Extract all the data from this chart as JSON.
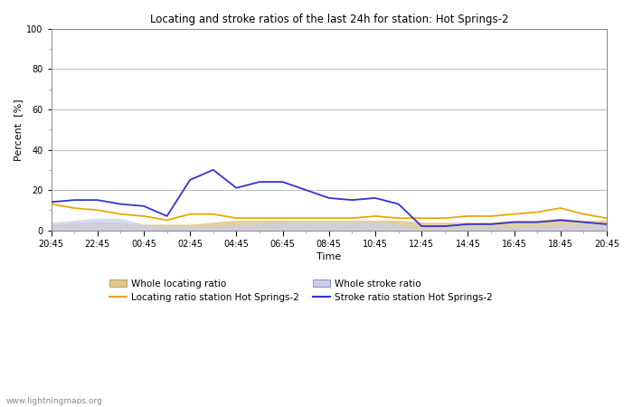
{
  "title": "Locating and stroke ratios of the last 24h for station: Hot Springs-2",
  "xlabel": "Time",
  "ylabel": "Percent  [%]",
  "ylim": [
    0,
    100
  ],
  "yticks": [
    0,
    20,
    40,
    60,
    80,
    100
  ],
  "watermark": "www.lightningmaps.org",
  "x_labels_major": [
    "20:45",
    "22:45",
    "00:45",
    "02:45",
    "04:45",
    "06:45",
    "08:45",
    "10:45",
    "12:45",
    "14:45",
    "16:45",
    "18:45",
    "20:45"
  ],
  "x_major_pos": [
    0,
    2,
    4,
    6,
    8,
    10,
    12,
    14,
    16,
    18,
    20,
    22,
    24
  ],
  "whole_locating": [
    3,
    4,
    4,
    4,
    3,
    3,
    3,
    4,
    5,
    5,
    5,
    5,
    5,
    5,
    5,
    5,
    4,
    4,
    4,
    4,
    5,
    5,
    6,
    5,
    5
  ],
  "locating_station": [
    13,
    11,
    10,
    8,
    7,
    5,
    8,
    8,
    6,
    6,
    6,
    6,
    6,
    6,
    7,
    6,
    6,
    6,
    7,
    7,
    8,
    9,
    11,
    8,
    6
  ],
  "whole_stroke": [
    4,
    5,
    6,
    6,
    3,
    2,
    2,
    2,
    3,
    3,
    4,
    4,
    4,
    4,
    4,
    3,
    1,
    2,
    2,
    2,
    2,
    2,
    3,
    3,
    3
  ],
  "stroke_station": [
    14,
    15,
    15,
    13,
    12,
    7,
    25,
    30,
    21,
    24,
    24,
    20,
    16,
    15,
    16,
    13,
    2,
    2,
    3,
    3,
    4,
    4,
    5,
    4,
    3
  ],
  "color_locating_station": "#e6aa00",
  "color_stroke_station": "#3333cc",
  "fill_whole_locating": "#e0c88a",
  "fill_whole_stroke": "#c8cef0",
  "bg_color": "#ffffff",
  "plot_bg": "#ffffff",
  "grid_color": "#bbbbbb",
  "legend_wl": "Whole locating ratio",
  "legend_ls": "Locating ratio station Hot Springs-2",
  "legend_ws": "Whole stroke ratio",
  "legend_ss": "Stroke ratio station Hot Springs-2"
}
